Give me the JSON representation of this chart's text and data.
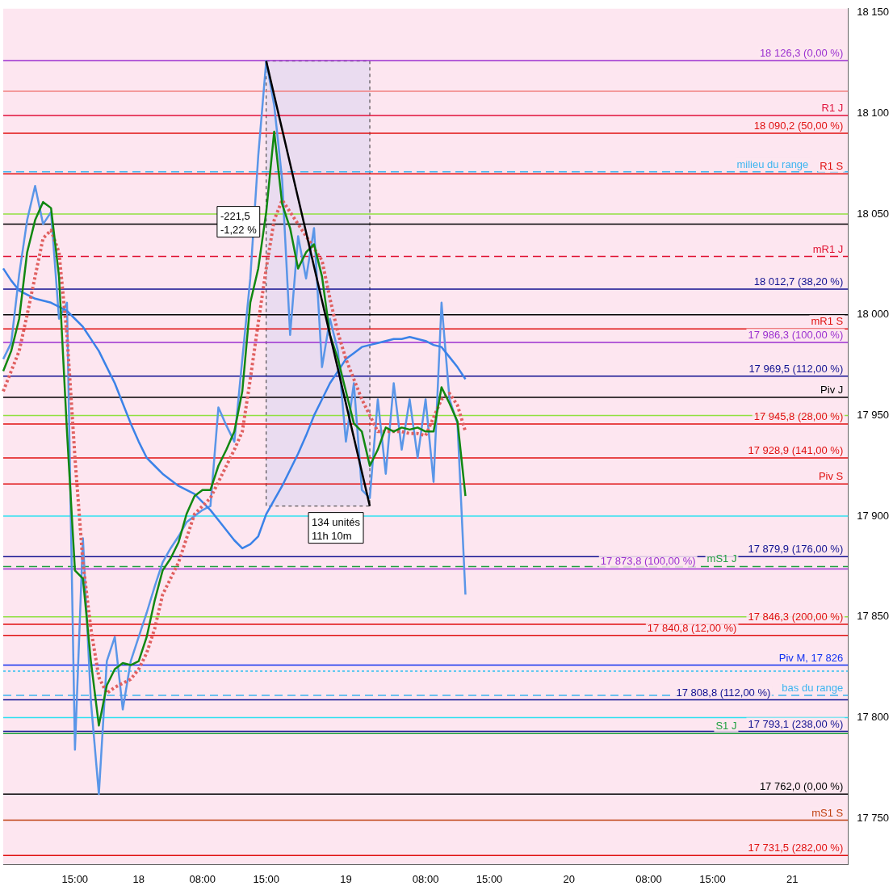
{
  "chart_data": {
    "type": "line",
    "ylim": [
      17727,
      18152
    ],
    "categories": [
      null,
      null,
      null,
      null,
      null,
      null,
      null,
      null,
      null,
      "15:00",
      null,
      null,
      null,
      null,
      null,
      null,
      null,
      "18",
      null,
      null,
      null,
      null,
      null,
      null,
      null,
      "08:00",
      null,
      null,
      null,
      null,
      null,
      null,
      null,
      "15:00",
      null,
      null,
      null,
      null,
      null,
      null,
      null,
      null,
      null,
      "19",
      null,
      null,
      null,
      null,
      null,
      null,
      null,
      null,
      null,
      "08:00",
      null,
      null,
      null,
      null,
      null,
      null,
      null,
      "15:00",
      null,
      null,
      null,
      null,
      null,
      null,
      null,
      null,
      null,
      "20",
      null,
      null,
      null,
      null,
      null,
      null,
      null,
      null,
      null,
      "08:00",
      null,
      null,
      null,
      null,
      null,
      null,
      null,
      "15:00",
      null,
      null,
      null,
      null,
      null,
      null,
      null,
      null,
      null,
      "21",
      null,
      null,
      null,
      null,
      null,
      null,
      null
    ],
    "yticks": [
      {
        "value": 17750,
        "label": "17 750"
      },
      {
        "value": 17800,
        "label": "17 800"
      },
      {
        "value": 17850,
        "label": "17 850"
      },
      {
        "value": 17900,
        "label": "17 900"
      },
      {
        "value": 17950,
        "label": "17 950"
      },
      {
        "value": 18000,
        "label": "18 000"
      },
      {
        "value": 18050,
        "label": "18 050"
      },
      {
        "value": 18100,
        "label": "18 100"
      },
      {
        "value": 18150,
        "label": "18 150"
      }
    ],
    "grid": false,
    "legend": false,
    "marker": "none",
    "ref_lines": [
      {
        "axis": "y",
        "value": 18126.3,
        "label": "18 126,3 (0,00 %)",
        "color": "#9b30d0"
      },
      {
        "axis": "y",
        "value": 18111,
        "color": "#f08080"
      },
      {
        "axis": "y",
        "value": 18099,
        "label": "R1 J",
        "color": "#e0103a"
      },
      {
        "axis": "y",
        "value": 18090.2,
        "label": "18 090,2 (50,00 %)",
        "color": "#e01010"
      },
      {
        "axis": "y",
        "value": 18070,
        "label": "R1 S",
        "color": "#e01010"
      },
      {
        "axis": "y",
        "value": 18071,
        "label": "milieu du range",
        "color": "#3cb4f0",
        "line_style": "dashed"
      },
      {
        "axis": "y",
        "value": 18050,
        "color": "#90e040"
      },
      {
        "axis": "y",
        "value": 18045,
        "color": "#000000"
      },
      {
        "axis": "y",
        "value": 18029,
        "label": "mR1 J",
        "color": "#e01030",
        "line_style": "dashed"
      },
      {
        "axis": "y",
        "value": 18012.7,
        "label": "18 012,7 (38,20 %)",
        "color": "#101090"
      },
      {
        "axis": "y",
        "value": 18000,
        "color": "#000000"
      },
      {
        "axis": "y",
        "value": 17993,
        "label": "mR1 S",
        "color": "#e01010"
      },
      {
        "axis": "y",
        "value": 17986.3,
        "label": "17 986,3 (100,00 %)",
        "color": "#9b30d0"
      },
      {
        "axis": "y",
        "value": 17969.5,
        "label": "17 969,5 (112,00 %)",
        "color": "#101090"
      },
      {
        "axis": "y",
        "value": 17959,
        "label": "Piv J",
        "color": "#000000"
      },
      {
        "axis": "y",
        "value": 17950,
        "color": "#90e040"
      },
      {
        "axis": "y",
        "value": 17945.8,
        "label": "17 945,8 (28,00 %)",
        "color": "#e01010"
      },
      {
        "axis": "y",
        "value": 17928.9,
        "label": "17 928,9 (141,00 %)",
        "color": "#e01010"
      },
      {
        "axis": "y",
        "value": 17916,
        "label": "Piv S",
        "color": "#e01010"
      },
      {
        "axis": "y",
        "value": 17900,
        "color": "#30e0f0"
      },
      {
        "axis": "y",
        "value": 17879.9,
        "label": "17 879,9 (176,00 %)",
        "color": "#101090"
      },
      {
        "axis": "y",
        "value": 17875,
        "label": "mS1 J",
        "color": "#20a040",
        "line_style": "dashed"
      },
      {
        "axis": "y",
        "value": 17873.8,
        "label": "17 873,8 (100,00 %)",
        "color": "#9b30d0"
      },
      {
        "axis": "y",
        "value": 17850,
        "color": "#90e040"
      },
      {
        "axis": "y",
        "value": 17846.3,
        "label": "17 846,3 (200,00 %)",
        "color": "#e01010"
      },
      {
        "axis": "y",
        "value": 17840.8,
        "label": "17 840,8 (12,00 %)",
        "color": "#e01010"
      },
      {
        "axis": "y",
        "value": 17826,
        "label": "Piv M, 17 826",
        "color": "#1030f0"
      },
      {
        "axis": "y",
        "value": 17823,
        "color": "#30c0f0",
        "line_style": "dotted"
      },
      {
        "axis": "y",
        "value": 17811,
        "label": "bas du range",
        "color": "#3cb4f0",
        "line_style": "dashed"
      },
      {
        "axis": "y",
        "value": 17808.8,
        "label": "17 808,8 (112,00 %)",
        "color": "#101090"
      },
      {
        "axis": "y",
        "value": 17800,
        "color": "#30e0f0"
      },
      {
        "axis": "y",
        "value": 17793.1,
        "label": "17 793,1 (238,00 %)",
        "color": "#101090"
      },
      {
        "axis": "y",
        "value": 17792,
        "label": "S1 J",
        "color": "#20a040"
      },
      {
        "axis": "y",
        "value": 17762,
        "label": "17 762,0 (0,00 %)",
        "color": "#000000"
      },
      {
        "axis": "y",
        "value": 17749,
        "label": "mS1 S",
        "color": "#c04010"
      },
      {
        "axis": "y",
        "value": 17731.5,
        "label": "17 731,5 (282,00 %)",
        "color": "#e01010"
      }
    ],
    "annotations": [
      "-221,5\n-1,22 %",
      "134 unités\n11h 10m"
    ],
    "series": [
      {
        "color": "#5a96e8",
        "values": [
          17978,
          17986,
          18020,
          18047,
          18064,
          18045,
          18051,
          17998,
          18006,
          17784,
          17889,
          17808,
          17762,
          17828,
          17840,
          17804,
          17828,
          17840,
          17852,
          17865,
          17877,
          17884,
          17890,
          17897,
          17900,
          17903,
          17905,
          17954,
          17945,
          17937,
          17978,
          18018,
          18079,
          18126,
          18104,
          18067,
          17990,
          18039,
          18018,
          18043,
          17974,
          17998,
          17982,
          17937,
          17966,
          17913,
          17909,
          17958,
          17921,
          17966,
          17933,
          17958,
          17929,
          17958,
          17917,
          18006,
          17958,
          17946,
          17861,
          null,
          null,
          null,
          null,
          null,
          null,
          null,
          null,
          null,
          null,
          null,
          null,
          null,
          null,
          null,
          null,
          null,
          null,
          null,
          null,
          null,
          null,
          null,
          null,
          null,
          null,
          null,
          null,
          null,
          null,
          null,
          null,
          null,
          null,
          null,
          null,
          null,
          null,
          null,
          null,
          null,
          null,
          null,
          null,
          null,
          null,
          null,
          null
        ]
      },
      {
        "color": "#3b82e8",
        "values": [
          18023,
          18017,
          18012,
          18010,
          18008,
          18007,
          18006,
          18004,
          18002,
          17998,
          17994,
          17988,
          17982,
          17974,
          17966,
          17956,
          17946,
          17937,
          17929,
          17925,
          17921,
          17918,
          17915,
          17913,
          17911,
          17907,
          17903,
          17898,
          17893,
          17888,
          17884,
          17886,
          17890,
          17901,
          17908,
          17915,
          17923,
          17931,
          17940,
          17950,
          17958,
          17966,
          17972,
          17978,
          17981,
          17984,
          17985,
          17986,
          17987,
          17988,
          17988,
          17989,
          17988,
          17987,
          17985,
          17984,
          17979,
          17974,
          17968,
          null,
          null,
          null,
          null,
          null,
          null,
          null,
          null,
          null,
          null,
          null,
          null,
          null,
          null,
          null,
          null,
          null,
          null,
          null,
          null,
          null,
          null,
          null,
          null,
          null,
          null,
          null,
          null,
          null,
          null,
          null,
          null,
          null,
          null,
          null,
          null,
          null,
          null,
          null,
          null,
          null,
          null,
          null,
          null,
          null,
          null,
          null,
          null
        ]
      },
      {
        "color": "#e06060",
        "line_style": "dotted",
        "values": [
          17962,
          17972,
          17982,
          18000,
          18019,
          18038,
          18042,
          18031,
          17990,
          17929,
          17877,
          17844,
          17820,
          17812,
          17815,
          17817,
          17819,
          17824,
          17832,
          17844,
          17861,
          17869,
          17877,
          17889,
          17901,
          17905,
          17909,
          17917,
          17925,
          17933,
          17942,
          17968,
          17996,
          18023,
          18047,
          18057,
          18051,
          18045,
          18039,
          18033,
          18027,
          18008,
          17991,
          17978,
          17968,
          17958,
          17950,
          17942,
          17942,
          17942,
          17942,
          17941,
          17941,
          17940,
          17949,
          17958,
          17961,
          17955,
          17942,
          null,
          null,
          null,
          null,
          null,
          null,
          null,
          null,
          null,
          null,
          null,
          null,
          null,
          null,
          null,
          null,
          null,
          null,
          null,
          null,
          null,
          null,
          null,
          null,
          null,
          null,
          null,
          null,
          null,
          null,
          null,
          null,
          null,
          null,
          null,
          null,
          null,
          null,
          null,
          null,
          null,
          null,
          null,
          null,
          null,
          null,
          null,
          null
        ]
      },
      {
        "color": "#118811",
        "values": [
          17972,
          17982,
          17998,
          18031,
          18047,
          18056,
          18053,
          18019,
          17942,
          17873,
          17869,
          17828,
          17796,
          17816,
          17824,
          17827,
          17826,
          17828,
          17840,
          17858,
          17873,
          17879,
          17887,
          17901,
          17910,
          17913,
          17913,
          17925,
          17933,
          17942,
          17962,
          18006,
          18023,
          18051,
          18091,
          18055,
          18043,
          18023,
          18031,
          18035,
          18019,
          17990,
          17978,
          17962,
          17946,
          17942,
          17925,
          17933,
          17944,
          17942,
          17944,
          17943,
          17944,
          17942,
          17942,
          17964,
          17956,
          17947,
          17910,
          null,
          null,
          null,
          null,
          null,
          null,
          null,
          null,
          null,
          null,
          null,
          null,
          null,
          null,
          null,
          null,
          null,
          null,
          null,
          null,
          null,
          null,
          null,
          null,
          null,
          null,
          null,
          null,
          null,
          null,
          null,
          null,
          null,
          null,
          null,
          null,
          null,
          null,
          null,
          null,
          null,
          null,
          null,
          null,
          null,
          null,
          null,
          null
        ]
      },
      {
        "color": "#000000",
        "values": [
          null,
          null,
          null,
          null,
          null,
          null,
          null,
          null,
          null,
          null,
          null,
          null,
          null,
          null,
          null,
          null,
          null,
          null,
          null,
          null,
          null,
          null,
          null,
          null,
          null,
          null,
          null,
          null,
          null,
          null,
          null,
          null,
          null,
          18126,
          18109,
          18092,
          18075,
          18058,
          18041,
          18024,
          18007,
          17990,
          17973,
          17956,
          17939,
          17922,
          17905,
          null,
          null,
          null,
          null,
          null,
          null,
          null,
          null,
          null,
          null,
          null,
          null,
          null,
          null,
          null,
          null,
          null,
          null,
          null,
          null,
          null,
          null,
          null,
          null,
          null,
          null,
          null,
          null,
          null,
          null,
          null,
          null,
          null,
          null,
          null,
          null,
          null,
          null,
          null,
          null,
          null,
          null,
          null,
          null,
          null,
          null,
          null,
          null,
          null,
          null,
          null,
          null,
          null,
          null,
          null,
          null,
          null,
          null,
          null,
          null
        ]
      }
    ]
  }
}
